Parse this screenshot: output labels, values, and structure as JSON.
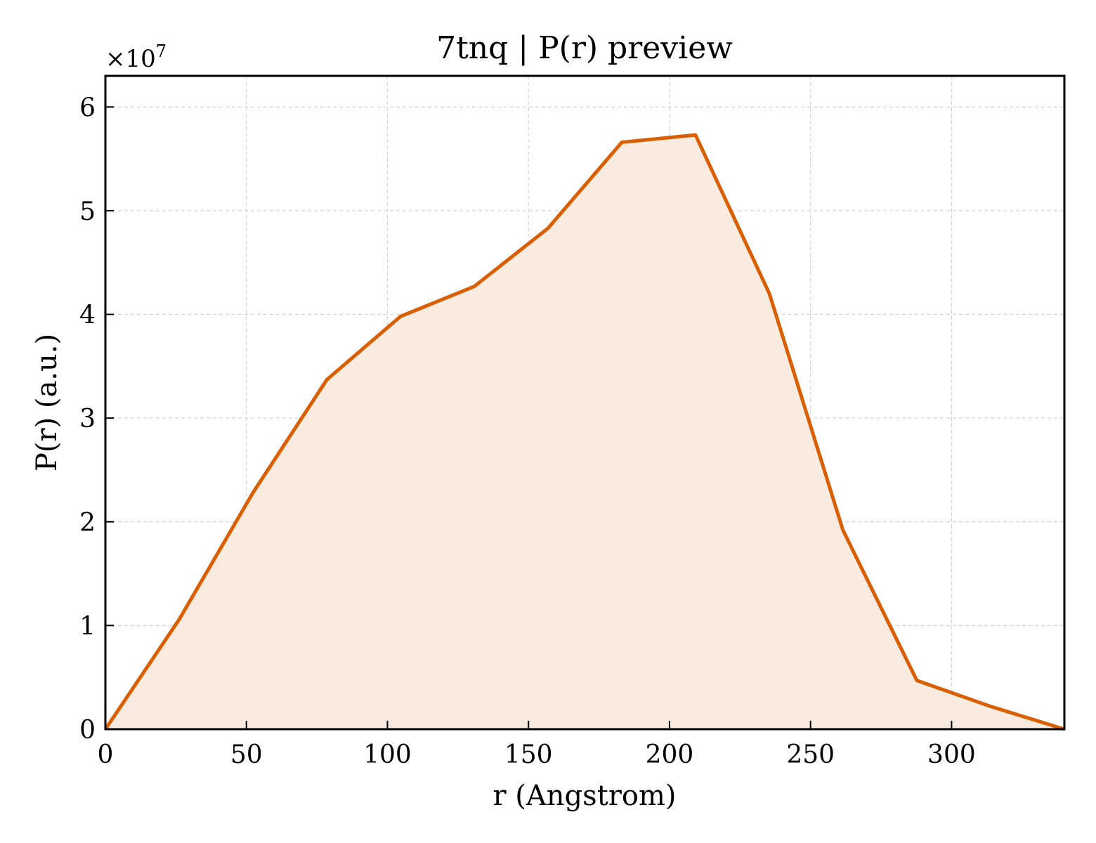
{
  "chart_data": {
    "type": "area",
    "title": "7tnq | P(r) preview",
    "xlabel": "r (Angstrom)",
    "ylabel": "P(r) (a.u.)",
    "y_multiplier_label": "×10",
    "y_multiplier_exponent": "7",
    "xlim": [
      0,
      340
    ],
    "ylim": [
      0,
      6.3
    ],
    "x_ticks": [
      0,
      50,
      100,
      150,
      200,
      250,
      300
    ],
    "y_ticks": [
      0,
      1,
      2,
      3,
      4,
      5,
      6
    ],
    "grid": true,
    "line_color": "#d95f02",
    "fill_color": "#f9ebe0",
    "series": [
      {
        "x": [
          0,
          26.2,
          52.3,
          78.5,
          104.6,
          130.8,
          156.9,
          183.1,
          209.2,
          235.4,
          261.5,
          287.7,
          313.8,
          340
        ],
        "y": [
          0,
          1.06,
          2.28,
          3.37,
          3.98,
          4.27,
          4.83,
          5.66,
          5.73,
          4.2,
          1.92,
          0.47,
          0.22,
          0
        ]
      }
    ]
  }
}
